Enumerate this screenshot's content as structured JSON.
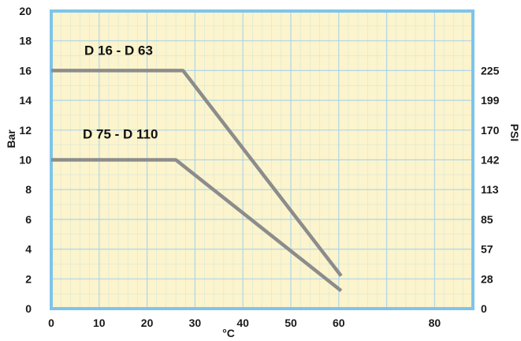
{
  "chart_data": {
    "type": "line",
    "title": "",
    "xlabel": "°C",
    "ylabel": "Bar",
    "y2label": "PSI",
    "xlim": [
      0,
      88
    ],
    "ylim": [
      0,
      20
    ],
    "xticks": [
      "0",
      "10",
      "20",
      "30",
      "40",
      "50",
      "60",
      "80"
    ],
    "xtick_values": [
      0,
      10,
      20,
      30,
      40,
      50,
      60,
      80
    ],
    "yticks": [
      "0",
      "2",
      "4",
      "6",
      "8",
      "10",
      "12",
      "14",
      "16",
      "18",
      "20"
    ],
    "ytick_values": [
      0,
      2,
      4,
      6,
      8,
      10,
      12,
      14,
      16,
      18,
      20
    ],
    "y2ticks": [
      "0",
      "28",
      "57",
      "85",
      "113",
      "142",
      "170",
      "199",
      "225"
    ],
    "y2tick_bar_values": [
      0,
      2,
      4,
      6,
      8,
      10,
      12,
      14,
      16
    ],
    "grid": true,
    "series": [
      {
        "name": "D 16 - D 63",
        "x": [
          0,
          27.5,
          60.5
        ],
        "y": [
          16,
          16,
          2.2
        ]
      },
      {
        "name": "D 75 - D 110",
        "x": [
          0,
          26,
          60.5
        ],
        "y": [
          10,
          10,
          1.2
        ]
      }
    ],
    "colors": {
      "plot_bg": "#fbf4cc",
      "frame": "#7fc4ea",
      "grid": "#a9d2ea",
      "line": "#8c8c8c"
    }
  }
}
